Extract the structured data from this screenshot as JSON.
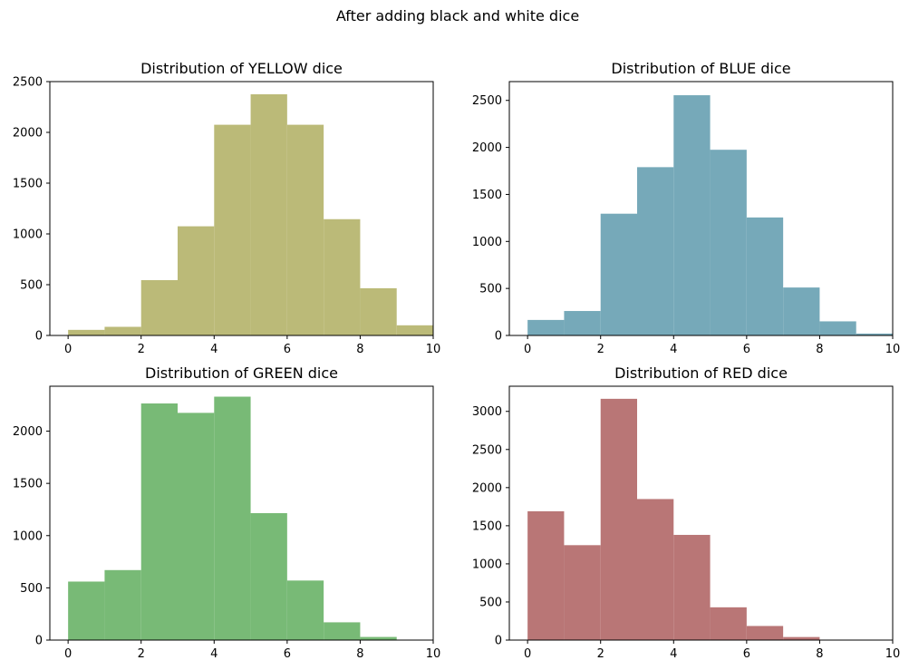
{
  "figure": {
    "title": "After adding black and white dice"
  },
  "chart_data": [
    {
      "type": "bar",
      "title": "Distribution of YELLOW dice",
      "color": "#bbba78",
      "xlim": [
        -0.5,
        10
      ],
      "ylim": [
        0,
        2500
      ],
      "xticks": [
        0,
        2,
        4,
        6,
        8,
        10
      ],
      "yticks": [
        0,
        500,
        1000,
        1500,
        2000,
        2500
      ],
      "bin_edges": [
        0,
        1,
        2,
        3,
        4,
        5,
        6,
        7,
        8,
        9,
        10
      ],
      "values": [
        55,
        85,
        545,
        1075,
        2075,
        2375,
        2075,
        1145,
        465,
        100
      ],
      "xlabel": "",
      "ylabel": "",
      "grid": false
    },
    {
      "type": "bar",
      "title": "Distribution of BLUE dice",
      "color": "#76a9b9",
      "xlim": [
        -0.5,
        10
      ],
      "ylim": [
        0,
        2700
      ],
      "xticks": [
        0,
        2,
        4,
        6,
        8,
        10
      ],
      "yticks": [
        0,
        500,
        1000,
        1500,
        2000,
        2500
      ],
      "bin_edges": [
        0,
        1,
        2,
        3,
        4,
        5,
        6,
        7,
        8,
        9,
        10
      ],
      "values": [
        165,
        260,
        1295,
        1790,
        2555,
        1975,
        1255,
        510,
        150,
        20
      ],
      "xlabel": "",
      "ylabel": "",
      "grid": false
    },
    {
      "type": "bar",
      "title": "Distribution of GREEN dice",
      "color": "#78ba76",
      "xlim": [
        -0.5,
        10
      ],
      "ylim": [
        0,
        2430
      ],
      "xticks": [
        0,
        2,
        4,
        6,
        8,
        10
      ],
      "yticks": [
        0,
        500,
        1000,
        1500,
        2000
      ],
      "bin_edges": [
        0,
        1,
        2,
        3,
        4,
        5,
        6,
        7,
        8,
        9,
        10
      ],
      "values": [
        560,
        670,
        2265,
        2175,
        2330,
        1215,
        570,
        170,
        30,
        0
      ],
      "xlabel": "",
      "ylabel": "",
      "grid": false
    },
    {
      "type": "bar",
      "title": "Distribution of RED dice",
      "color": "#b97676",
      "xlim": [
        -0.5,
        10
      ],
      "ylim": [
        0,
        3330
      ],
      "xticks": [
        0,
        2,
        4,
        6,
        8,
        10
      ],
      "yticks": [
        0,
        500,
        1000,
        1500,
        2000,
        2500,
        3000
      ],
      "bin_edges": [
        0,
        1,
        2,
        3,
        4,
        5,
        6,
        7,
        8,
        9,
        10
      ],
      "values": [
        1690,
        1245,
        3165,
        1850,
        1380,
        430,
        185,
        40,
        0,
        0
      ],
      "xlabel": "",
      "ylabel": "",
      "grid": false
    }
  ]
}
